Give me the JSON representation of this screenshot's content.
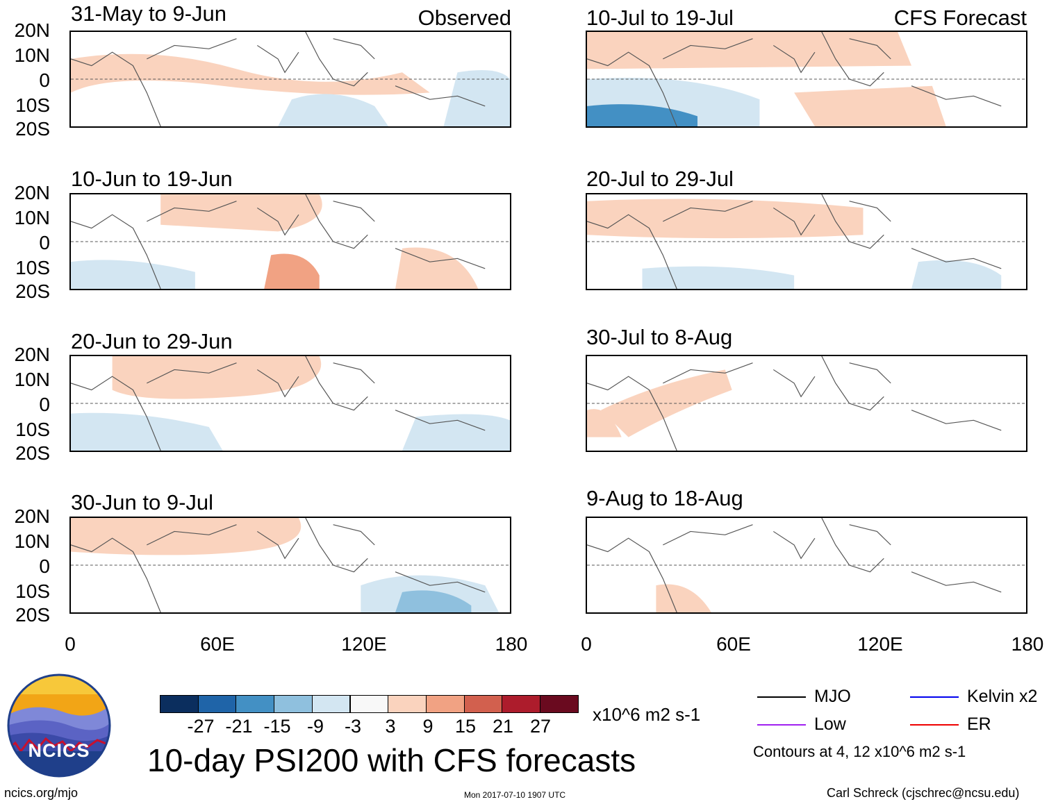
{
  "panels": [
    {
      "title": "31-May to 9-Jun",
      "label": "Observed"
    },
    {
      "title": "10-Jun to 19-Jun",
      "label": ""
    },
    {
      "title": "20-Jun to 29-Jun",
      "label": ""
    },
    {
      "title": "30-Jun to 9-Jul",
      "label": ""
    },
    {
      "title": "10-Jul to 19-Jul",
      "label": "CFS Forecast"
    },
    {
      "title": "20-Jul to 29-Jul",
      "label": ""
    },
    {
      "title": "30-Jul to 8-Aug",
      "label": ""
    },
    {
      "title": "9-Aug to 18-Aug",
      "label": ""
    }
  ],
  "lat_labels": [
    "20N",
    "10N",
    "0",
    "10S",
    "20S"
  ],
  "lon_labels": [
    "0",
    "60E",
    "120E",
    "180"
  ],
  "colorbar": {
    "ticks": [
      "-27",
      "-21",
      "-15",
      "-9",
      "-3",
      "3",
      "9",
      "15",
      "21",
      "27"
    ],
    "colors": [
      "#0b2e5e",
      "#1f64a8",
      "#4390c4",
      "#8fc0de",
      "#d3e6f2",
      "#f8f8f8",
      "#fad3be",
      "#f1a283",
      "#d2604e",
      "#ad1c2c",
      "#6a0a1f"
    ],
    "units": "x10^6 m2 s-1"
  },
  "main_title": "10-day PSI200 with CFS forecasts",
  "logo_text": "NCICS",
  "legend": {
    "items": [
      {
        "label": "MJO",
        "color": "#000000"
      },
      {
        "label": "Kelvin x2",
        "color": "#0000ee"
      },
      {
        "label": "Low",
        "color": "#a020f0"
      },
      {
        "label": "ER",
        "color": "#ee0000"
      }
    ],
    "contours_note": "Contours at 4, 12 x10^6 m2 s-1"
  },
  "footer": {
    "left": "ncics.org/mjo",
    "center": "Mon 2017-07-10 1907 UTC",
    "right": "Carl Schreck (cjschrec@ncsu.edu)"
  }
}
